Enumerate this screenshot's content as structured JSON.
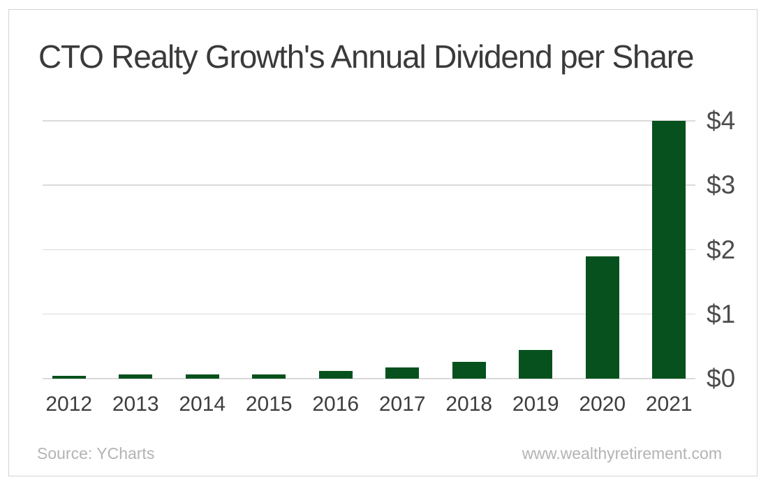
{
  "title": "CTO Realty Growth's Annual Dividend per Share",
  "footer": {
    "source": "Source: YCharts",
    "website": "www.wealthyretirement.com"
  },
  "colors": {
    "bar": "#06511d",
    "grid": "#dadada",
    "title_text": "#3a3a3a",
    "axis_text": "#4c4c4c",
    "footer_text": "#b3b3b3",
    "card_border": "#d4d4d4",
    "background": "#ffffff"
  },
  "chart_data": {
    "type": "bar",
    "title": "CTO Realty Growth's Annual Dividend per Share",
    "categories": [
      "2012",
      "2013",
      "2014",
      "2015",
      "2016",
      "2017",
      "2018",
      "2019",
      "2020",
      "2021"
    ],
    "values": [
      0.04,
      0.06,
      0.07,
      0.07,
      0.12,
      0.17,
      0.26,
      0.44,
      1.9,
      4.0
    ],
    "xlabel": "",
    "ylabel": "",
    "ylim": [
      0,
      4
    ],
    "yticks": [
      0,
      1,
      2,
      3,
      4
    ],
    "ytick_labels": [
      "$0",
      "$1",
      "$2",
      "$3",
      "$4"
    ],
    "y_axis_side": "right",
    "grid": true,
    "legend": "none",
    "bar_color": "#06511d"
  }
}
